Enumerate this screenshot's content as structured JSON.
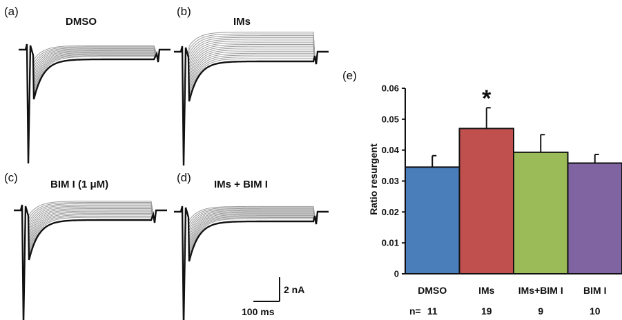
{
  "panels": {
    "a": {
      "letter": "(a)",
      "title": "DMSO"
    },
    "b": {
      "letter": "(b)",
      "title": "IMs"
    },
    "c": {
      "letter": "(c)",
      "title": "BIM I (1 μM)"
    },
    "d": {
      "letter": "(d)",
      "title": "IMs + BIM I"
    },
    "e": {
      "letter": "(e)"
    }
  },
  "scale_bar": {
    "vertical_label": "2 nA",
    "horizontal_label": "100 ms"
  },
  "n_row": {
    "label": "n=",
    "values": [
      "11",
      "19",
      "9",
      "10"
    ]
  },
  "significance_marker": "*",
  "chart_data": {
    "type": "bar",
    "categories": [
      "DMSO",
      "IMs",
      "IMs+BIM I",
      "BIM I"
    ],
    "values": [
      0.0345,
      0.047,
      0.0393,
      0.0358
    ],
    "errors": [
      0.0037,
      0.0067,
      0.0057,
      0.0028
    ],
    "colors": [
      "#4a7ebb",
      "#c0504d",
      "#9bbb59",
      "#8064a2"
    ],
    "ylabel": "Ratio resurgent",
    "xlabel": "",
    "ylim": [
      0,
      0.06
    ],
    "yticks": [
      "0",
      "0.01",
      "0.02",
      "0.03",
      "0.04",
      "0.05",
      "0.06"
    ],
    "significant": [
      false,
      true,
      false,
      false
    ],
    "grid": false
  }
}
